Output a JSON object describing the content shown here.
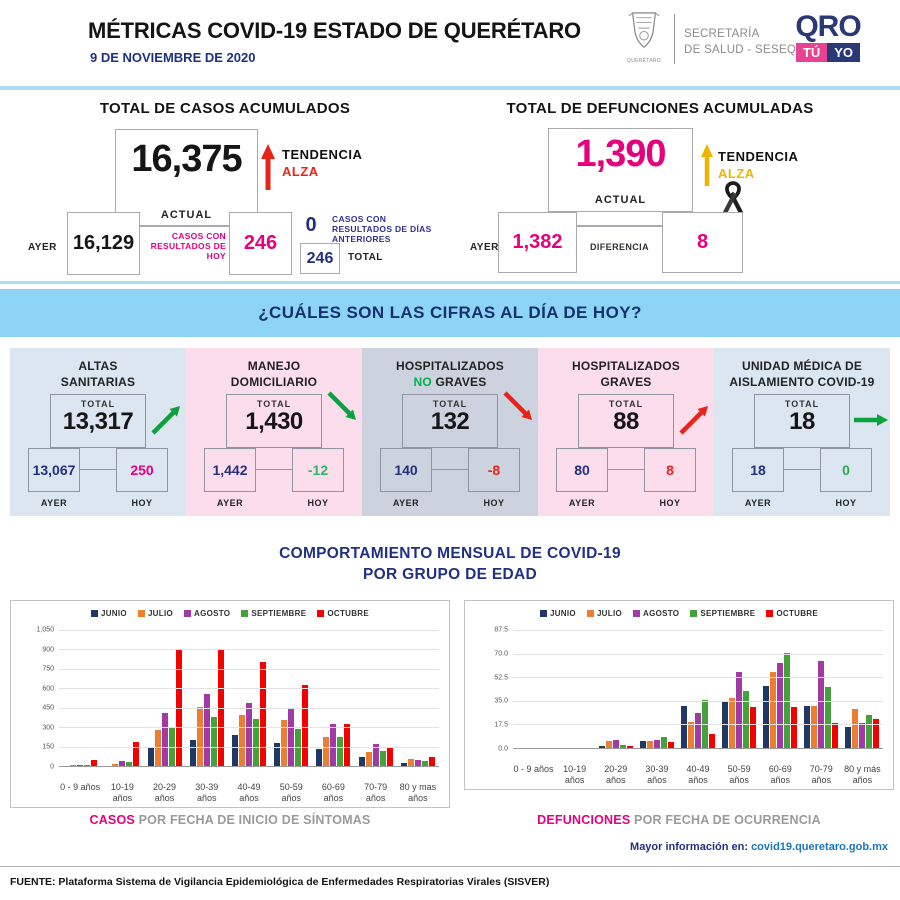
{
  "header": {
    "title": "MÉTRICAS COVID-19 ESTADO DE QUERÉTARO",
    "date": "9 DE NOVIEMBRE DE 2020",
    "crest_caption": "QUERÉTARO",
    "org_line1": "SECRETARÍA",
    "org_line2": "DE SALUD - SESEQ",
    "brand": {
      "qro": "QRO",
      "tu": "TÚ",
      "yo": "YO"
    }
  },
  "casos": {
    "title": "TOTAL DE CASOS ACUMULADOS",
    "actual": "16,375",
    "actual_label": "ACTUAL",
    "tendencia_label": "TENDENCIA",
    "tendencia_value": "ALZA",
    "ayer_label": "AYER",
    "ayer": "16,129",
    "hoy_label": "CASOS CON RESULTADOS DE HOY",
    "hoy": "246",
    "anteriores": "0",
    "anteriores_label": "CASOS CON RESULTADOS DE DÍAS ANTERIORES",
    "total": "246",
    "total_label": "TOTAL"
  },
  "defunciones": {
    "title": "TOTAL DE DEFUNCIONES ACUMULADAS",
    "actual": "1,390",
    "actual_label": "ACTUAL",
    "tendencia_label": "TENDENCIA",
    "tendencia_value": "ALZA",
    "ayer_label": "AYER",
    "ayer": "1,382",
    "diferencia_label": "DIFERENCIA",
    "diferencia": "8"
  },
  "banner": {
    "text": "¿CUÁLES SON LAS CIFRAS AL DÍA DE HOY?"
  },
  "cards": [
    {
      "id": "altas-sanitarias",
      "title_line1": "ALTAS",
      "title_line2_parts": [
        {
          "text": "SANITARIAS"
        }
      ],
      "total_label": "TOTAL",
      "total": "13,317",
      "ayer_label": "AYER",
      "ayer": "13,067",
      "hoy_label": "HOY",
      "hoy": "250",
      "hoy_color": "#E5007E",
      "arrow": "up-right",
      "arrow_color": "#0AA23C",
      "bg": "#DCE6F0"
    },
    {
      "id": "manejo-domiciliario",
      "title_line1": "MANEJO",
      "title_line2_parts": [
        {
          "text": "DOMICILIARIO"
        }
      ],
      "total_label": "TOTAL",
      "total": "1,430",
      "ayer_label": "AYER",
      "ayer": "1,442",
      "hoy_label": "HOY",
      "hoy": "-12",
      "hoy_color": "#2EB573",
      "arrow": "down-right",
      "arrow_color": "#0AA23C",
      "bg": "#FBDDEC"
    },
    {
      "id": "hospitalizados-no-graves",
      "title_line1": "HOSPITALIZADOS",
      "title_line2_parts": [
        {
          "text": "NO ",
          "color": "#00B050"
        },
        {
          "text": "GRAVES"
        }
      ],
      "total_label": "TOTAL",
      "total": "132",
      "ayer_label": "AYER",
      "ayer": "140",
      "hoy_label": "HOY",
      "hoy": "-8",
      "hoy_color": "#E8231A",
      "arrow": "down-right",
      "arrow_color": "#E8231A",
      "bg": "#CDD3DE"
    },
    {
      "id": "hospitalizados-graves",
      "title_line1": "HOSPITALIZADOS",
      "title_line2_parts": [
        {
          "text": "GRAVES"
        }
      ],
      "total_label": "TOTAL",
      "total": "88",
      "ayer_label": "AYER",
      "ayer": "80",
      "hoy_label": "HOY",
      "hoy": "8",
      "hoy_color": "#E8231A",
      "arrow": "up-right",
      "arrow_color": "#E8231A",
      "bg": "#FBDDEC"
    },
    {
      "id": "unidad-medica-aislamiento",
      "title_line1": "UNIDAD MÉDICA DE",
      "title_line2_parts": [
        {
          "text": "AISLAMIENTO COVID-19"
        }
      ],
      "total_label": "TOTAL",
      "total": "18",
      "ayer_label": "AYER",
      "ayer": "18",
      "hoy_label": "HOY",
      "hoy": "0",
      "hoy_color": "#2EA84F",
      "arrow": "right",
      "arrow_color": "#0AA23C",
      "bg": "#DCE6F0"
    }
  ],
  "charts_title_line1": "COMPORTAMIENTO MENSUAL DE COVID-19",
  "charts_title_line2": "POR GRUPO DE EDAD",
  "chart_data": [
    {
      "type": "bar",
      "caption_highlight": "CASOS",
      "caption_rest": " POR FECHA DE INICIO DE SÍNTOMAS",
      "legend_position": "top",
      "grid": true,
      "ylim": [
        0,
        1050
      ],
      "yticks": [
        {
          "v": 0,
          "label": "0"
        },
        {
          "v": 150,
          "label": "150"
        },
        {
          "v": 300,
          "label": "300"
        },
        {
          "v": 450,
          "label": "450"
        },
        {
          "v": 600,
          "label": "600"
        },
        {
          "v": 750,
          "label": "750"
        },
        {
          "v": 900,
          "label": "900"
        },
        {
          "v": 1050,
          "label": "1,050"
        }
      ],
      "categories": [
        "0 - 9 años",
        "10-19 años",
        "20-29 años",
        "30-39 años",
        "40-49 años",
        "50-59 años",
        "60-69 años",
        "70-79 años",
        "80 y mas años"
      ],
      "series": [
        {
          "name": "JUNIO",
          "color": "#1F3864",
          "values": [
            5,
            10,
            145,
            205,
            245,
            185,
            140,
            75,
            30
          ]
        },
        {
          "name": "JULIO",
          "color": "#ED7D31",
          "values": [
            18,
            25,
            285,
            465,
            405,
            365,
            235,
            115,
            65
          ]
        },
        {
          "name": "AGOSTO",
          "color": "#A23AA6",
          "values": [
            15,
            45,
            415,
            565,
            495,
            450,
            335,
            180,
            55
          ]
        },
        {
          "name": "SEPTIEMBRE",
          "color": "#44A13C",
          "values": [
            12,
            35,
            305,
            385,
            370,
            290,
            230,
            125,
            45
          ]
        },
        {
          "name": "OCTUBRE",
          "color": "#F40000",
          "values": [
            55,
            190,
            900,
            910,
            810,
            635,
            335,
            150,
            75
          ]
        }
      ]
    },
    {
      "type": "bar",
      "caption_highlight": "DEFUNCIONES",
      "caption_rest": " POR FECHA DE OCURRENCIA",
      "legend_position": "top",
      "grid": true,
      "ylim": [
        0,
        87.5
      ],
      "yticks": [
        {
          "v": 0,
          "label": "0.0"
        },
        {
          "v": 17.5,
          "label": "17.5"
        },
        {
          "v": 35,
          "label": "35.0"
        },
        {
          "v": 52.5,
          "label": "52.5"
        },
        {
          "v": 70,
          "label": "70.0"
        },
        {
          "v": 87.5,
          "label": "87.5"
        }
      ],
      "categories": [
        "0 - 9 años",
        "10-19 años",
        "20-29 años",
        "30-39 años",
        "40-49 años",
        "50-59 años",
        "60-69 años",
        "70-79 años",
        "80 y más años"
      ],
      "series": [
        {
          "name": "JUNIO",
          "color": "#1F3864",
          "values": [
            0,
            0,
            2,
            6,
            32,
            35,
            47,
            32,
            16
          ]
        },
        {
          "name": "JULIO",
          "color": "#ED7D31",
          "values": [
            0,
            0,
            6,
            6,
            20,
            38,
            57,
            32,
            30
          ]
        },
        {
          "name": "AGOSTO",
          "color": "#A23AA6",
          "values": [
            0,
            1,
            7,
            7,
            27,
            57,
            64,
            65,
            19
          ]
        },
        {
          "name": "SEPTIEMBRE",
          "color": "#44A13C",
          "values": [
            0,
            0,
            3,
            9,
            36,
            43,
            71,
            46,
            25
          ]
        },
        {
          "name": "OCTUBRE",
          "color": "#F40000",
          "values": [
            0,
            0,
            2,
            5,
            11,
            31,
            31,
            19,
            22
          ]
        }
      ]
    }
  ],
  "footer": {
    "info_label": "Mayor información en:",
    "info_link": "covid19.queretaro.gob.mx",
    "fuente": "FUENTE: Plataforma Sistema  de Vigilancia Epidemiológica de Enfermedades Respiratorias Virales (SISVER)"
  },
  "colors": {
    "accent_pink": "#E5007E",
    "accent_navy": "#1F3282",
    "banner_blue": "#8DD4F6",
    "trend_red": "#E8231A",
    "trend_yellow": "#F0B400",
    "trend_green": "#0AA23C",
    "link_blue": "#1B75BC"
  }
}
